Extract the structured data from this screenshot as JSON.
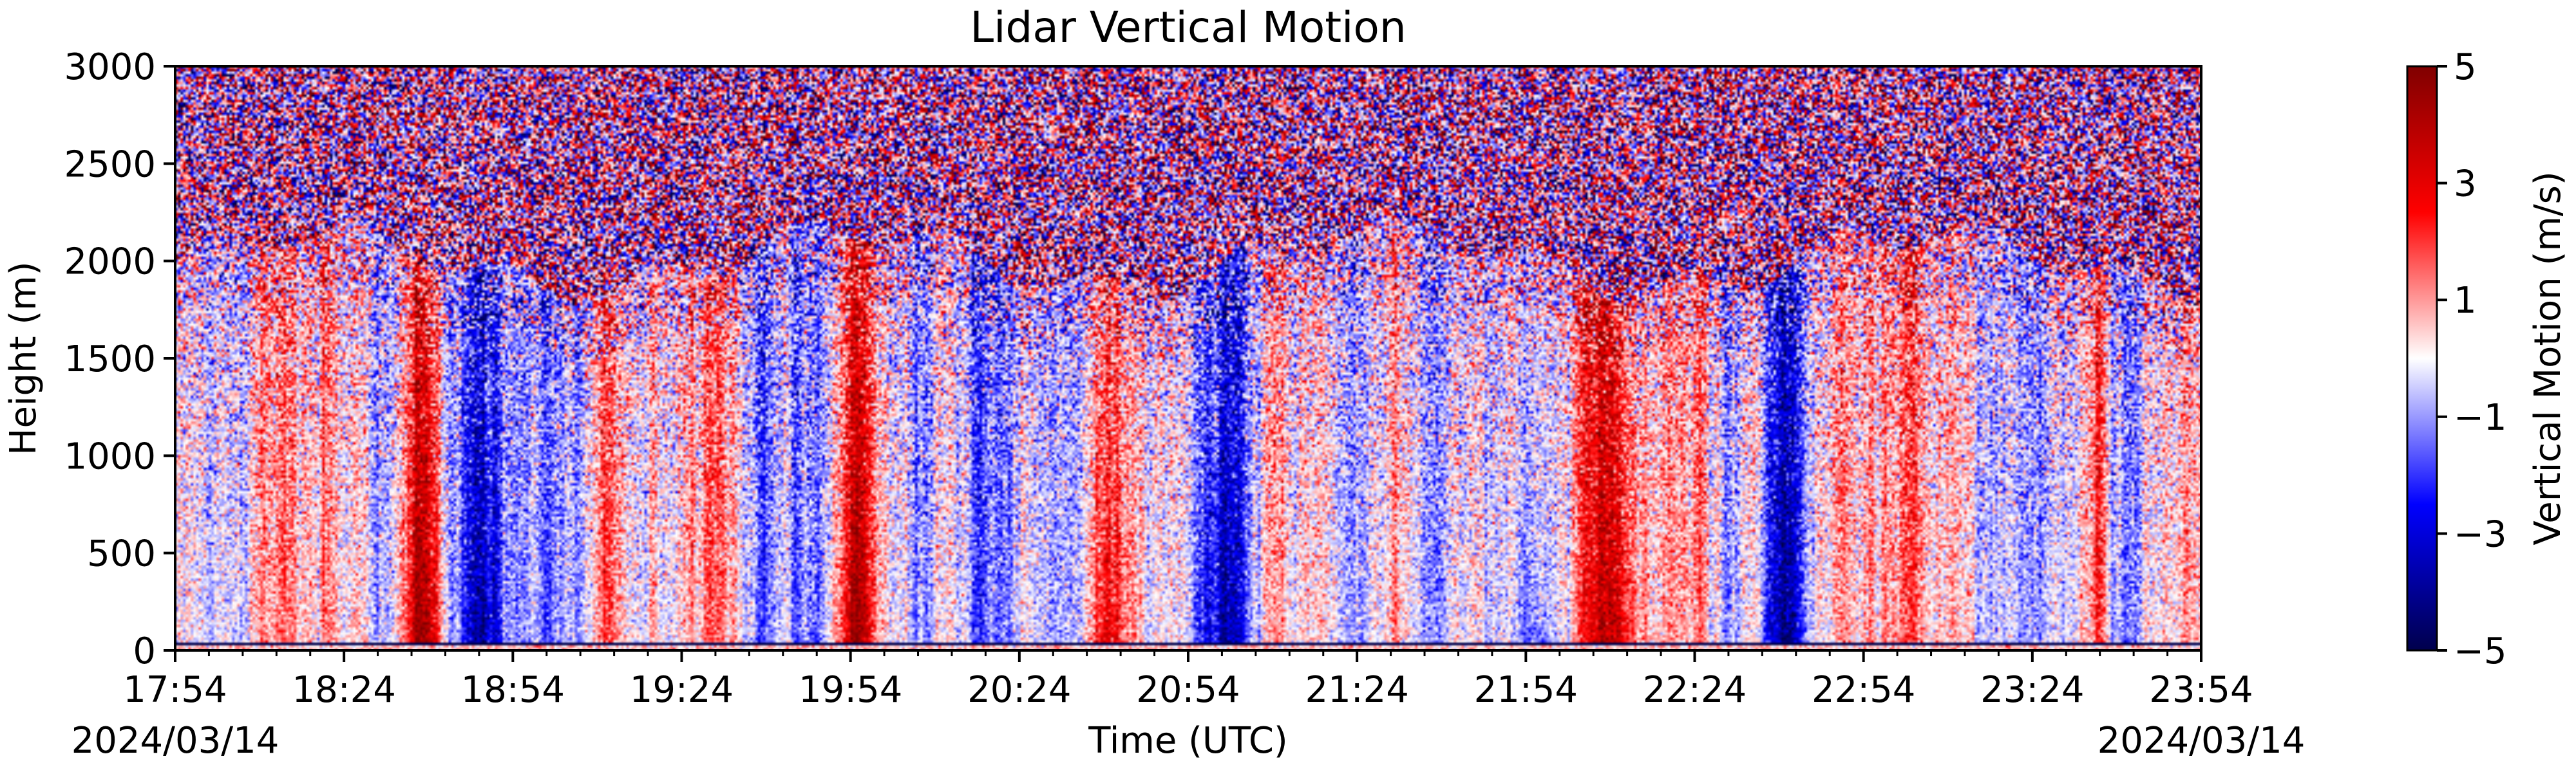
{
  "chart_data": {
    "type": "heatmap",
    "title": "Lidar Vertical Motion",
    "xlabel": "Time (UTC)",
    "ylabel": "Height (m)",
    "x_ticks": [
      "17:54",
      "18:24",
      "18:54",
      "19:24",
      "19:54",
      "20:24",
      "20:54",
      "21:24",
      "21:54",
      "22:24",
      "22:54",
      "23:24",
      "23:54"
    ],
    "x_range": [
      "17:54",
      "23:54"
    ],
    "start_date": "2024/03/14",
    "end_date": "2024/03/14",
    "y_ticks": [
      0,
      500,
      1000,
      1500,
      2000,
      2500,
      3000
    ],
    "ylim": [
      0,
      3000
    ],
    "colorbar": {
      "label": "Vertical Motion (m/s)",
      "ticks": [
        5,
        3,
        1,
        -1,
        -3,
        -5
      ],
      "tick_labels": [
        "5",
        "3",
        "1",
        "−1",
        "−3",
        "−5"
      ],
      "range": [
        -5,
        5
      ],
      "colormap": "seismic",
      "colors": [
        "#00004c",
        "#0000ff",
        "#ffffff",
        "#ff0000",
        "#800000"
      ]
    },
    "features": {
      "noise_above_m": 2000,
      "surface_artifact_m": 50,
      "updraft_times": [
        "18:38",
        "19:55",
        "20:40",
        "22:10"
      ],
      "downdraft_times": [
        "18:48",
        "21:00",
        "21:55",
        "22:40"
      ]
    }
  }
}
